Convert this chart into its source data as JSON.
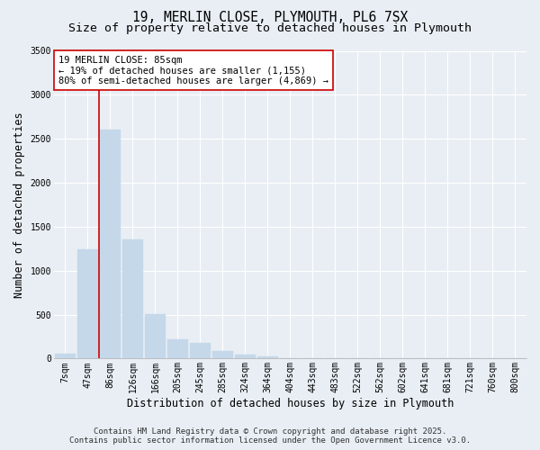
{
  "title_line1": "19, MERLIN CLOSE, PLYMOUTH, PL6 7SX",
  "title_line2": "Size of property relative to detached houses in Plymouth",
  "xlabel": "Distribution of detached houses by size in Plymouth",
  "ylabel": "Number of detached properties",
  "categories": [
    "7sqm",
    "47sqm",
    "86sqm",
    "126sqm",
    "166sqm",
    "205sqm",
    "245sqm",
    "285sqm",
    "324sqm",
    "364sqm",
    "404sqm",
    "443sqm",
    "483sqm",
    "522sqm",
    "562sqm",
    "602sqm",
    "641sqm",
    "681sqm",
    "721sqm",
    "760sqm",
    "800sqm"
  ],
  "values": [
    55,
    1240,
    2600,
    1360,
    510,
    220,
    175,
    90,
    50,
    20,
    8,
    3,
    2,
    1,
    0,
    0,
    0,
    0,
    0,
    0,
    0
  ],
  "bar_color": "#c5d8ea",
  "bar_edgecolor": "#c5d8ea",
  "vline_color": "#cc0000",
  "vline_x_index": 2,
  "annotation_title": "19 MERLIN CLOSE: 85sqm",
  "annotation_line2": "← 19% of detached houses are smaller (1,155)",
  "annotation_line3": "80% of semi-detached houses are larger (4,869) →",
  "annotation_box_edgecolor": "#cc0000",
  "annotation_box_facecolor": "#ffffff",
  "ylim": [
    0,
    3500
  ],
  "yticks": [
    0,
    500,
    1000,
    1500,
    2000,
    2500,
    3000,
    3500
  ],
  "background_color": "#e8eef4",
  "plot_bg_color": "#e8eef4",
  "grid_color": "#ffffff",
  "footer_line1": "Contains HM Land Registry data © Crown copyright and database right 2025.",
  "footer_line2": "Contains public sector information licensed under the Open Government Licence v3.0.",
  "title_fontsize": 10.5,
  "subtitle_fontsize": 9.5,
  "axis_label_fontsize": 8.5,
  "tick_fontsize": 7,
  "annotation_fontsize": 7.5,
  "footer_fontsize": 6.5
}
